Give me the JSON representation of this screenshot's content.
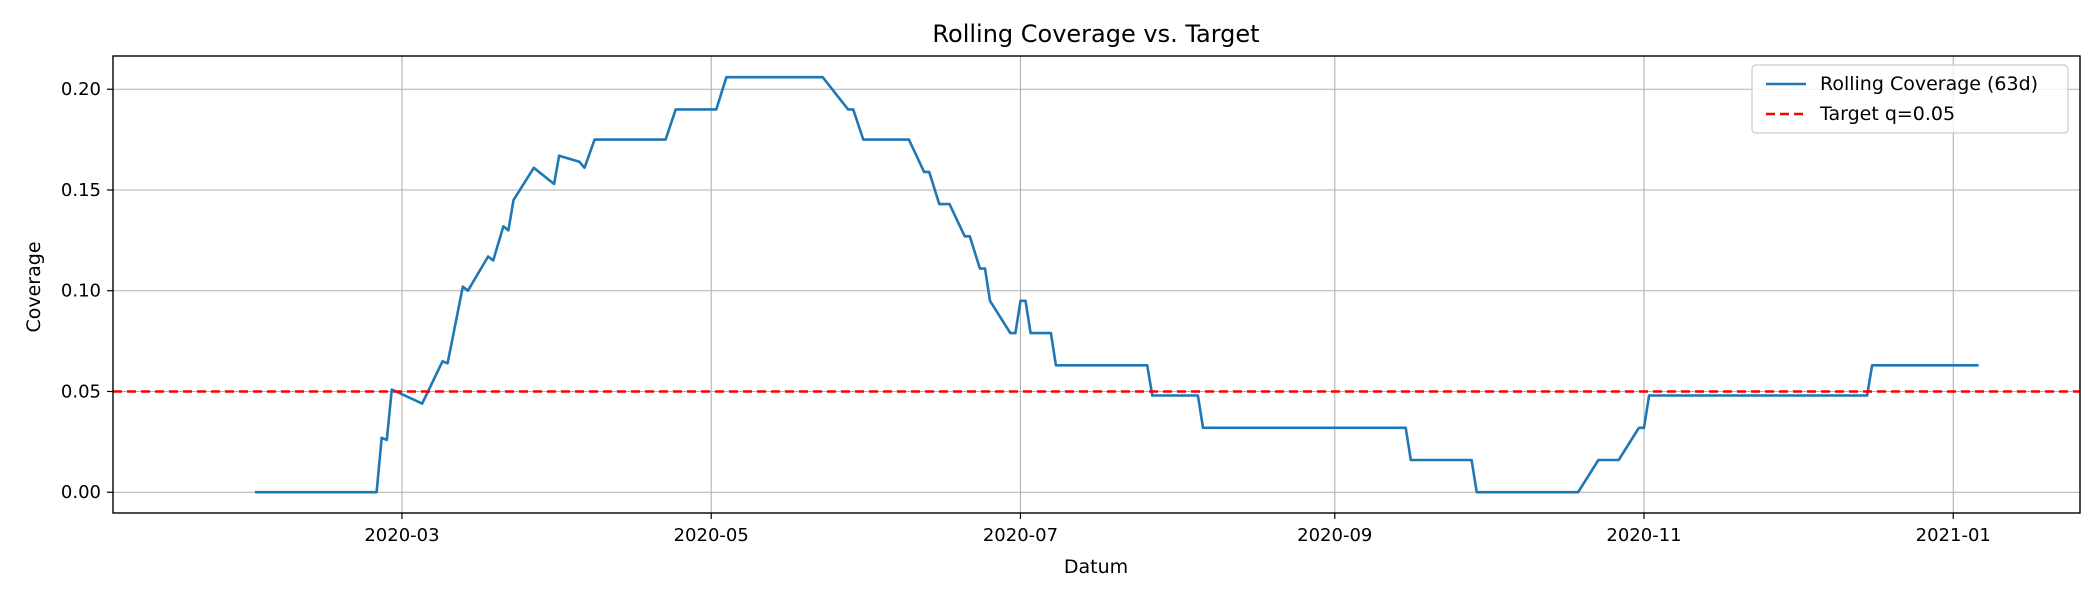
{
  "chart_data": {
    "type": "line",
    "title": "Rolling Coverage vs. Target",
    "xlabel": "Datum",
    "ylabel": "Coverage",
    "xlim": [
      "2020-01-04",
      "2021-01-26"
    ],
    "ylim": [
      -0.0103,
      0.2165
    ],
    "x_ticks": [
      "2020-03-01",
      "2020-05-01",
      "2020-07-01",
      "2020-09-01",
      "2020-11-01",
      "2021-01-01"
    ],
    "x_tick_labels": [
      "2020-03",
      "2020-05",
      "2020-07",
      "2020-09",
      "2020-11",
      "2021-01"
    ],
    "y_ticks": [
      0.0,
      0.05,
      0.1,
      0.15,
      0.2
    ],
    "y_tick_labels": [
      "0.00",
      "0.05",
      "0.10",
      "0.15",
      "0.20"
    ],
    "grid": true,
    "legend_position": "top-right",
    "series": [
      {
        "name": "Rolling Coverage (63d)",
        "color": "#1f77b4",
        "style": "solid",
        "points": [
          [
            "2020-02-01",
            0.0
          ],
          [
            "2020-02-25",
            0.0
          ],
          [
            "2020-02-26",
            0.027
          ],
          [
            "2020-02-27",
            0.026
          ],
          [
            "2020-02-28",
            0.051
          ],
          [
            "2020-03-05",
            0.044
          ],
          [
            "2020-03-09",
            0.065
          ],
          [
            "2020-03-10",
            0.064
          ],
          [
            "2020-03-13",
            0.102
          ],
          [
            "2020-03-14",
            0.1
          ],
          [
            "2020-03-18",
            0.117
          ],
          [
            "2020-03-19",
            0.115
          ],
          [
            "2020-03-21",
            0.132
          ],
          [
            "2020-03-22",
            0.13
          ],
          [
            "2020-03-23",
            0.145
          ],
          [
            "2020-03-27",
            0.161
          ],
          [
            "2020-03-31",
            0.153
          ],
          [
            "2020-04-01",
            0.167
          ],
          [
            "2020-04-05",
            0.164
          ],
          [
            "2020-04-06",
            0.161
          ],
          [
            "2020-04-08",
            0.175
          ],
          [
            "2020-04-21",
            0.175
          ],
          [
            "2020-04-22",
            0.175
          ],
          [
            "2020-04-24",
            0.19
          ],
          [
            "2020-05-02",
            0.19
          ],
          [
            "2020-05-04",
            0.206
          ],
          [
            "2020-05-23",
            0.206
          ],
          [
            "2020-05-28",
            0.19
          ],
          [
            "2020-05-29",
            0.19
          ],
          [
            "2020-05-31",
            0.175
          ],
          [
            "2020-06-09",
            0.175
          ],
          [
            "2020-06-12",
            0.159
          ],
          [
            "2020-06-13",
            0.159
          ],
          [
            "2020-06-15",
            0.143
          ],
          [
            "2020-06-17",
            0.143
          ],
          [
            "2020-06-20",
            0.127
          ],
          [
            "2020-06-21",
            0.127
          ],
          [
            "2020-06-23",
            0.111
          ],
          [
            "2020-06-24",
            0.111
          ],
          [
            "2020-06-25",
            0.095
          ],
          [
            "2020-06-29",
            0.079
          ],
          [
            "2020-06-30",
            0.079
          ],
          [
            "2020-07-01",
            0.095
          ],
          [
            "2020-07-02",
            0.095
          ],
          [
            "2020-07-03",
            0.079
          ],
          [
            "2020-07-07",
            0.079
          ],
          [
            "2020-07-08",
            0.063
          ],
          [
            "2020-07-26",
            0.063
          ],
          [
            "2020-07-27",
            0.048
          ],
          [
            "2020-08-05",
            0.048
          ],
          [
            "2020-08-06",
            0.032
          ],
          [
            "2020-09-15",
            0.032
          ],
          [
            "2020-09-16",
            0.016
          ],
          [
            "2020-09-28",
            0.016
          ],
          [
            "2020-09-29",
            0.0
          ],
          [
            "2020-10-19",
            0.0
          ],
          [
            "2020-10-23",
            0.016
          ],
          [
            "2020-10-27",
            0.016
          ],
          [
            "2020-10-31",
            0.032
          ],
          [
            "2020-11-01",
            0.032
          ],
          [
            "2020-11-02",
            0.048
          ],
          [
            "2020-12-15",
            0.048
          ],
          [
            "2020-12-16",
            0.063
          ],
          [
            "2021-01-06",
            0.063
          ]
        ]
      },
      {
        "name": "Target q=0.05",
        "color": "#ff0000",
        "style": "dashed",
        "y": 0.05
      }
    ]
  }
}
